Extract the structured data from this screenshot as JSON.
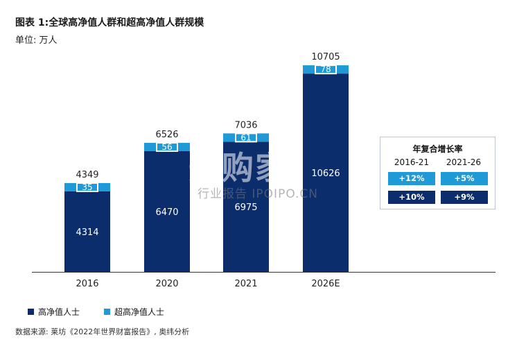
{
  "title": "图表 1:全球高净值人群和超高净值人群规模",
  "subtitle": "单位: 万人",
  "watermark": {
    "logo": "开购家",
    "sub": "行业报告 IPOIPO.CN"
  },
  "colors": {
    "hnwi": "#0c2d6b",
    "uhnwi": "#1f9ad6",
    "axis": "#333333"
  },
  "chart_data": {
    "type": "bar",
    "stacked": true,
    "categories": [
      "2016",
      "2020",
      "2021",
      "2026E"
    ],
    "series": [
      {
        "name": "高净值人士",
        "values": [
          4314,
          6470,
          6975,
          10626
        ]
      },
      {
        "name": "超高净值人士",
        "values": [
          35,
          56,
          61,
          78
        ]
      }
    ],
    "totals": [
      4349,
      6526,
      7036,
      10705
    ],
    "ylim": [
      0,
      10705
    ]
  },
  "growth_table": {
    "title": "年复合增长率",
    "headers": [
      "2016-21",
      "2021-26"
    ],
    "rows": [
      {
        "series": "超高净值人士",
        "values": [
          "+12%",
          "+5%"
        ]
      },
      {
        "series": "高净值人士",
        "values": [
          "+10%",
          "+9%"
        ]
      }
    ]
  },
  "legend": [
    {
      "label": "高净值人士",
      "icon": "square-navy"
    },
    {
      "label": "超高净值人士",
      "icon": "square-light-blue"
    }
  ],
  "source": "数据来源: 莱坊《2022年世界财富报告》, 奥纬分析"
}
